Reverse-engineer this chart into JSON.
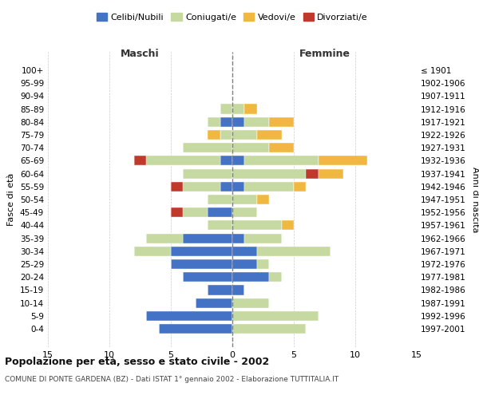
{
  "age_groups": [
    "0-4",
    "5-9",
    "10-14",
    "15-19",
    "20-24",
    "25-29",
    "30-34",
    "35-39",
    "40-44",
    "45-49",
    "50-54",
    "55-59",
    "60-64",
    "65-69",
    "70-74",
    "75-79",
    "80-84",
    "85-89",
    "90-94",
    "95-99",
    "100+"
  ],
  "birth_years": [
    "1997-2001",
    "1992-1996",
    "1987-1991",
    "1982-1986",
    "1977-1981",
    "1972-1976",
    "1967-1971",
    "1962-1966",
    "1957-1961",
    "1952-1956",
    "1947-1951",
    "1942-1946",
    "1937-1941",
    "1932-1936",
    "1927-1931",
    "1922-1926",
    "1917-1921",
    "1912-1916",
    "1907-1911",
    "1902-1906",
    "≤ 1901"
  ],
  "males": {
    "celibi": [
      6,
      7,
      3,
      2,
      4,
      5,
      5,
      4,
      0,
      2,
      0,
      1,
      0,
      1,
      0,
      0,
      1,
      0,
      0,
      0,
      0
    ],
    "coniugati": [
      0,
      0,
      0,
      0,
      0,
      0,
      3,
      3,
      2,
      2,
      2,
      3,
      4,
      6,
      4,
      1,
      1,
      1,
      0,
      0,
      0
    ],
    "vedovi": [
      0,
      0,
      0,
      0,
      0,
      0,
      0,
      0,
      0,
      0,
      0,
      0,
      0,
      0,
      0,
      1,
      0,
      0,
      0,
      0,
      0
    ],
    "divorziati": [
      0,
      0,
      0,
      0,
      0,
      0,
      0,
      0,
      0,
      1,
      0,
      1,
      0,
      1,
      0,
      0,
      0,
      0,
      0,
      0,
      0
    ]
  },
  "females": {
    "nubili": [
      0,
      0,
      0,
      1,
      3,
      2,
      2,
      1,
      0,
      0,
      0,
      1,
      0,
      1,
      0,
      0,
      1,
      0,
      0,
      0,
      0
    ],
    "coniugate": [
      6,
      7,
      3,
      0,
      1,
      1,
      6,
      3,
      4,
      2,
      2,
      4,
      6,
      6,
      3,
      2,
      2,
      1,
      0,
      0,
      0
    ],
    "vedove": [
      0,
      0,
      0,
      0,
      0,
      0,
      0,
      0,
      1,
      0,
      1,
      1,
      2,
      4,
      2,
      2,
      2,
      1,
      0,
      0,
      0
    ],
    "divorziate": [
      0,
      0,
      0,
      0,
      0,
      0,
      0,
      0,
      0,
      0,
      0,
      0,
      1,
      0,
      0,
      0,
      0,
      0,
      0,
      0,
      0
    ]
  },
  "colors": {
    "celibi_nubili": "#4472c4",
    "coniugati_e": "#c5d9a0",
    "vedovi_e": "#f0b840",
    "divorziati_e": "#c0392b"
  },
  "xlim": [
    -15,
    15
  ],
  "xticks": [
    -15,
    -10,
    -5,
    0,
    5,
    10,
    15
  ],
  "xticklabels": [
    "15",
    "10",
    "5",
    "0",
    "5",
    "10",
    "15"
  ],
  "title_main": "Popolazione per età, sesso e stato civile - 2002",
  "title_sub": "COMUNE DI PONTE GARDENA (BZ) - Dati ISTAT 1° gennaio 2002 - Elaborazione TUTTITALIA.IT",
  "ylabel_left": "Fasce di età",
  "ylabel_right": "Anni di nascita",
  "label_maschi": "Maschi",
  "label_femmine": "Femmine",
  "legend_labels": [
    "Celibi/Nubili",
    "Coniugati/e",
    "Vedovi/e",
    "Divorziati/e"
  ],
  "bg_color": "#ffffff",
  "grid_color": "#cccccc"
}
